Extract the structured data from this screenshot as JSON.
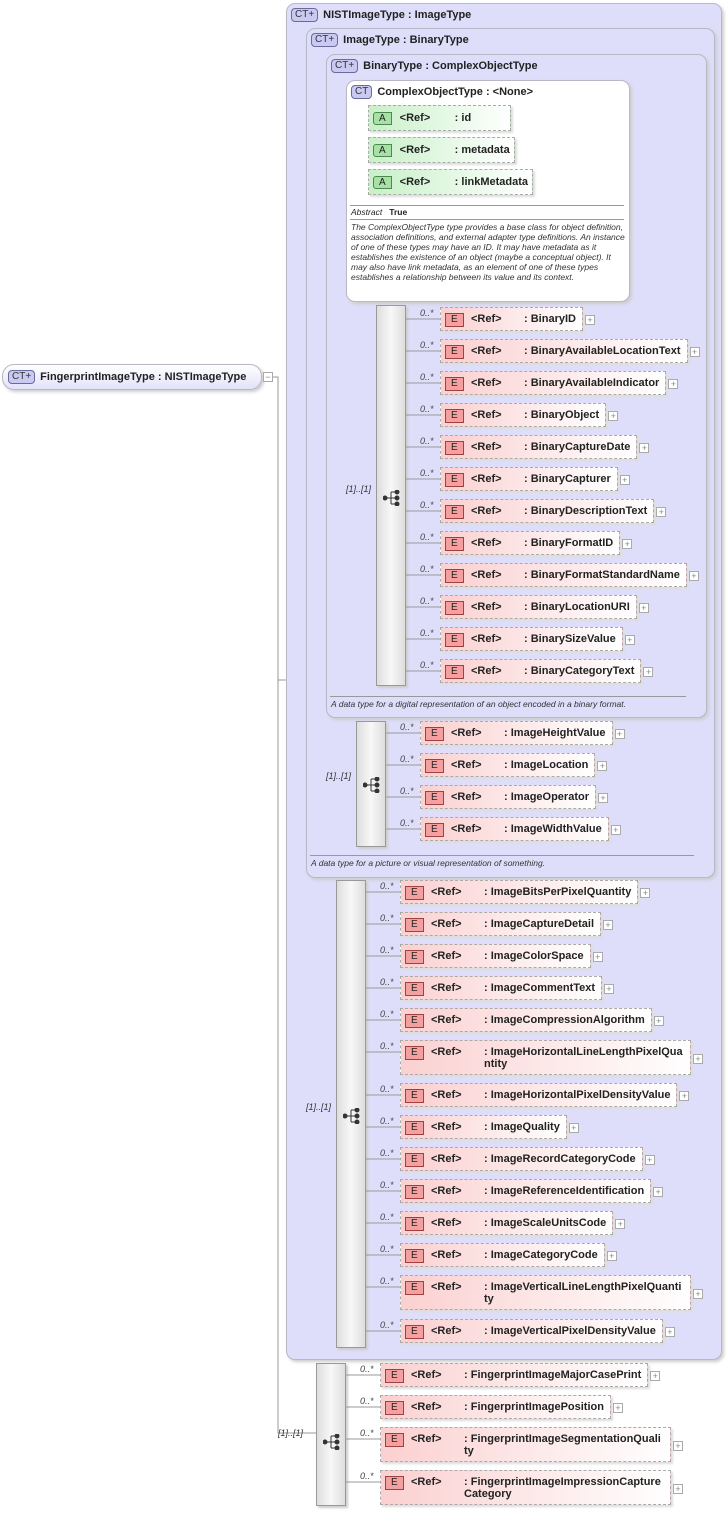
{
  "root": {
    "badge": "CT+",
    "title": "FingerprintImageType : NISTImageType"
  },
  "nist": {
    "badge": "CT+",
    "title": "NISTImageType : ImageType",
    "occurrence": "[1]..[1]",
    "elements": [
      "ImageBitsPerPixelQuantity",
      "ImageCaptureDetail",
      "ImageColorSpace",
      "ImageCommentText",
      "ImageCompressionAlgorithm",
      "ImageHorizontalLineLengthPixelQuantity",
      "ImageHorizontalPixelDensityValue",
      "ImageQuality",
      "ImageRecordCategoryCode",
      "ImageReferenceIdentification",
      "ImageScaleUnitsCode",
      "ImageCategoryCode",
      "ImageVerticalLineLengthPixelQuantity",
      "ImageVerticalPixelDensityValue"
    ]
  },
  "image": {
    "badge": "CT+",
    "title": "ImageType : BinaryType",
    "occurrence": "[1]..[1]",
    "description": "A data type for a picture or visual representation of something.",
    "elements": [
      "ImageHeightValue",
      "ImageLocation",
      "ImageOperator",
      "ImageWidthValue"
    ]
  },
  "binary": {
    "badge": "CT+",
    "title": "BinaryType : ComplexObjectType",
    "occurrence": "[1]..[1]",
    "description": "A data type for a digital representation of an object encoded in a binary format.",
    "elements": [
      "BinaryID",
      "BinaryAvailableLocationText",
      "BinaryAvailableIndicator",
      "BinaryObject",
      "BinaryCaptureDate",
      "BinaryCapturer",
      "BinaryDescriptionText",
      "BinaryFormatID",
      "BinaryFormatStandardName",
      "BinaryLocationURI",
      "BinarySizeValue",
      "BinaryCategoryText"
    ]
  },
  "complex": {
    "badge": "CT",
    "title": "ComplexObjectType : <None>",
    "abstract_label": "Abstract",
    "abstract_value": "True",
    "attributes": [
      {
        "badge": "A",
        "ref": "<Ref>",
        "name": ": id"
      },
      {
        "badge": "A",
        "ref": "<Ref>",
        "name": ": metadata"
      },
      {
        "badge": "A",
        "ref": "<Ref>",
        "name": ": linkMetadata"
      }
    ],
    "description": "The ComplexObjectType type provides a base class for object definition, association definitions, and external adapter type definitions. An instance of one of these types may have an ID. It may have metadata as it establishes the existence of an object (maybe a conceptual object). It may also have link metadata, as an element of one of these types establishes a relationship between its value and its context."
  },
  "fingerprint": {
    "occurrence": "[1]..[1]",
    "elements": [
      "FingerprintImageMajorCasePrint",
      "FingerprintImagePosition",
      "FingerprintImageSegmentationQuality",
      "FingerprintImageImpressionCaptureCategory"
    ]
  },
  "element_badge": "E",
  "ref_label": "<Ref>",
  "multiplicity": "0..*"
}
